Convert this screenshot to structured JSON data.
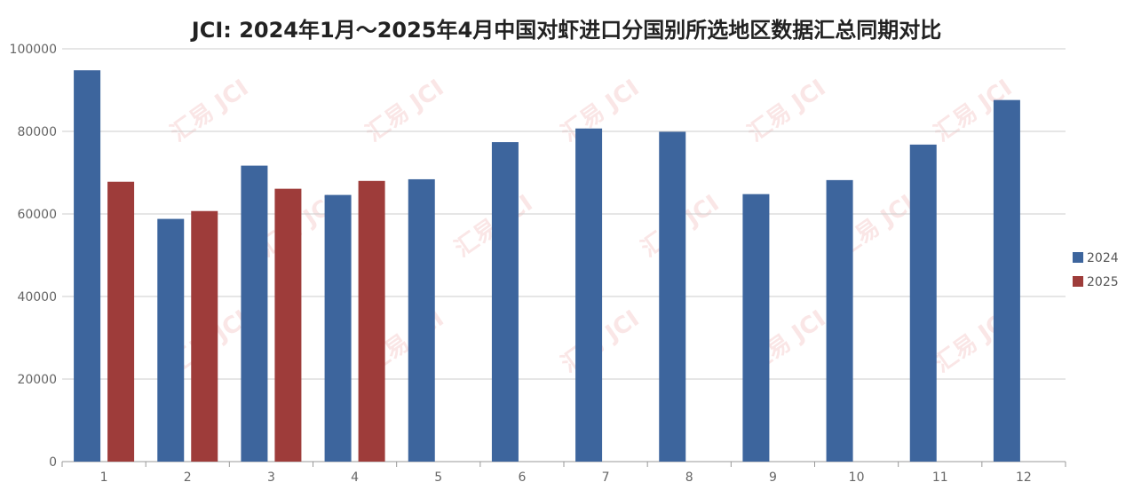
{
  "chart_data": {
    "type": "bar",
    "title": "JCI: 2024年1月～2025年4月中国对虾进口分国别所选地区数据汇总同期对比",
    "xlabel": "",
    "ylabel": "",
    "categories": [
      "1",
      "2",
      "3",
      "4",
      "5",
      "6",
      "7",
      "8",
      "9",
      "10",
      "11",
      "12"
    ],
    "series": [
      {
        "name": "2024",
        "color": "#3d659d",
        "values": [
          94800,
          58800,
          71700,
          64600,
          68400,
          77400,
          80700,
          79900,
          64800,
          68200,
          76800,
          87600
        ]
      },
      {
        "name": "2025",
        "color": "#9e3c3a",
        "values": [
          67800,
          60700,
          66100,
          68000,
          null,
          null,
          null,
          null,
          null,
          null,
          null,
          null
        ]
      }
    ],
    "ylim": [
      0,
      100000
    ],
    "yticks": [
      0,
      20000,
      40000,
      60000,
      80000,
      100000
    ],
    "grid": true,
    "legend_position": "right",
    "watermark": "汇易 JCI"
  }
}
